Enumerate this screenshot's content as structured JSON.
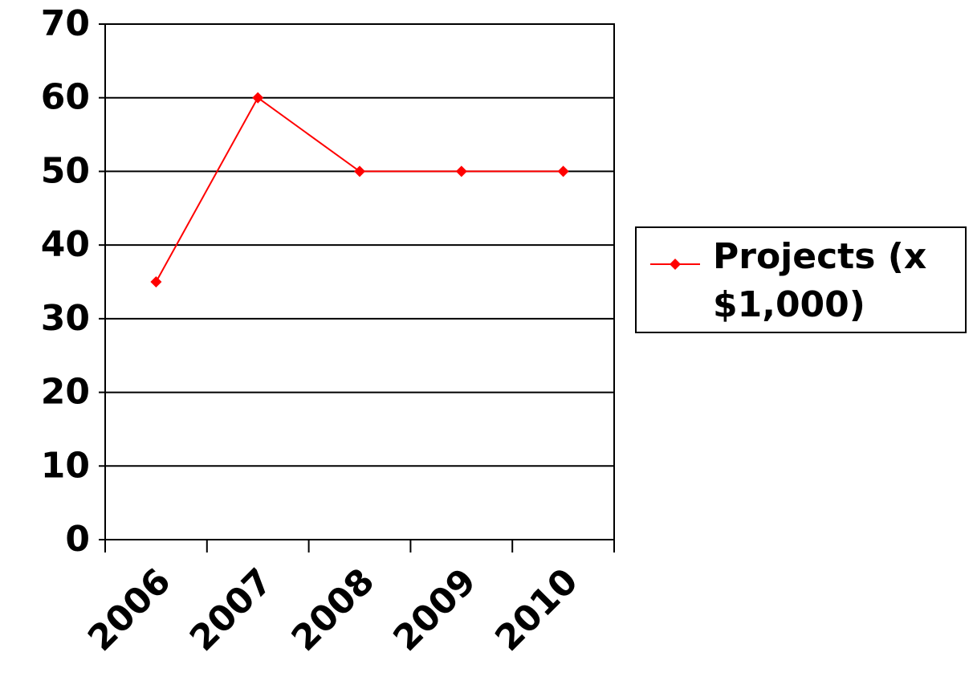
{
  "chart_data": {
    "type": "line",
    "categories": [
      "2006",
      "2007",
      "2008",
      "2009",
      "2010"
    ],
    "series": [
      {
        "name": "Projects (x $1,000)",
        "color": "#ff0000",
        "values": [
          35,
          60,
          50,
          50,
          50
        ]
      }
    ],
    "ylim": [
      0,
      70
    ],
    "yticks": [
      0,
      10,
      20,
      30,
      40,
      50,
      60,
      70
    ],
    "grid": true,
    "legend": "right"
  }
}
